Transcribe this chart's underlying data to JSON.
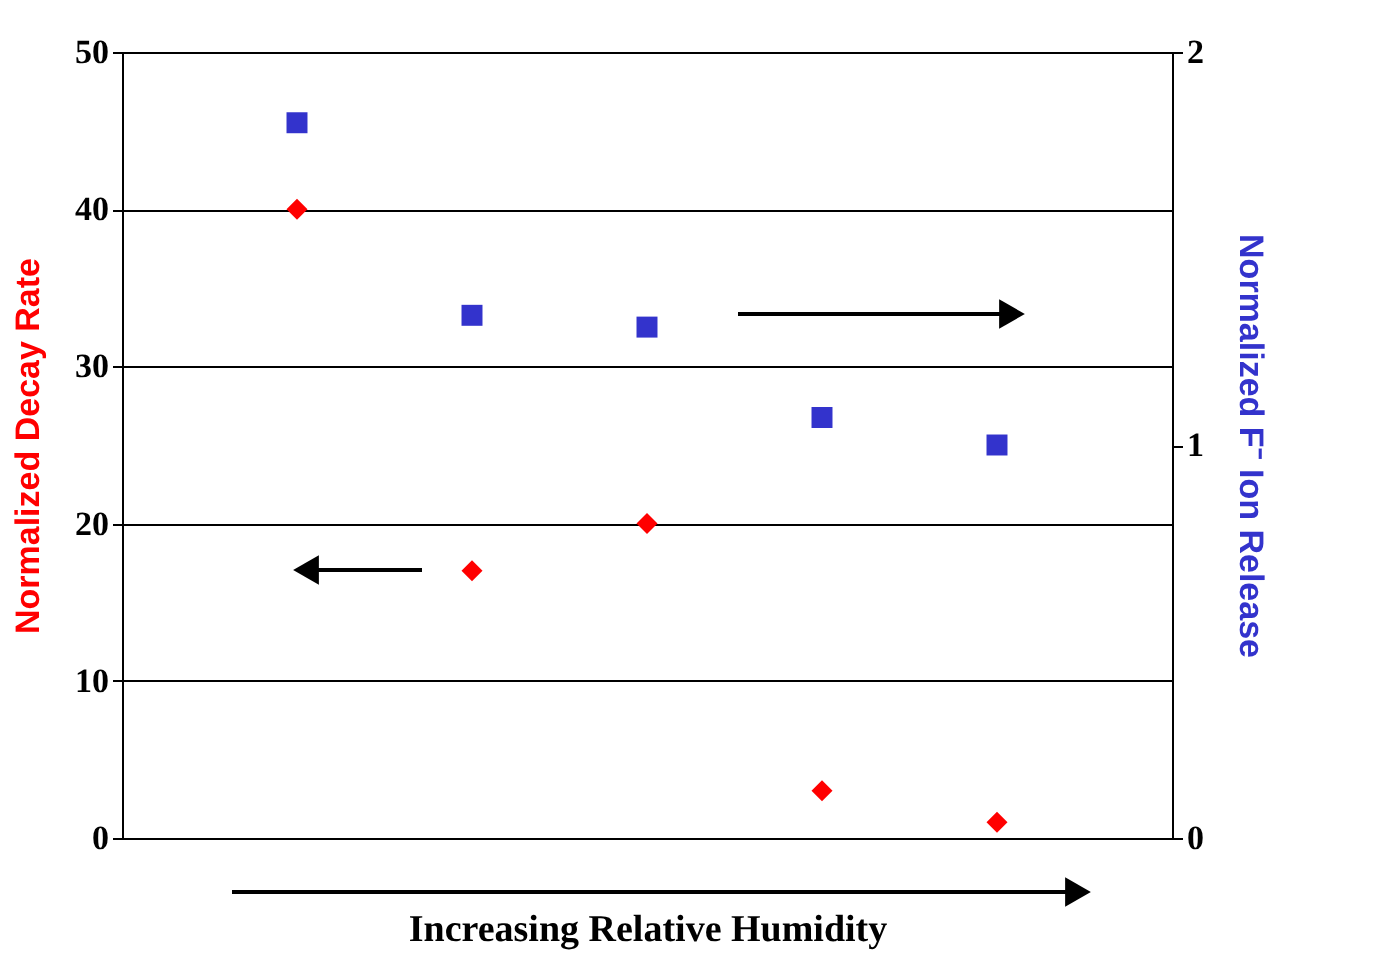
{
  "chart_data": {
    "type": "scatter",
    "xlabel": "Increasing Relative Humidity",
    "ylabel": "Normalized Decay Rate",
    "y2label": "Normalized F⁻ Ion Release",
    "categories": [
      null,
      null,
      null,
      null,
      null
    ],
    "series": [
      {
        "color": "#ff0000",
        "marker": "diamond",
        "values": [
          40,
          17,
          20,
          3,
          1
        ]
      },
      {
        "color": "#3333cc",
        "marker": "square",
        "axis": "y2",
        "values": [
          1.82,
          1.33,
          1.3,
          1.07,
          1.0
        ]
      }
    ],
    "ylim": [
      0,
      50
    ],
    "yticks": [
      0,
      10,
      20,
      30,
      40,
      50
    ],
    "y2lim": [
      0,
      2
    ],
    "y2ticks": [
      0,
      1,
      2
    ],
    "grid": "y",
    "tick_labels": "y"
  }
}
